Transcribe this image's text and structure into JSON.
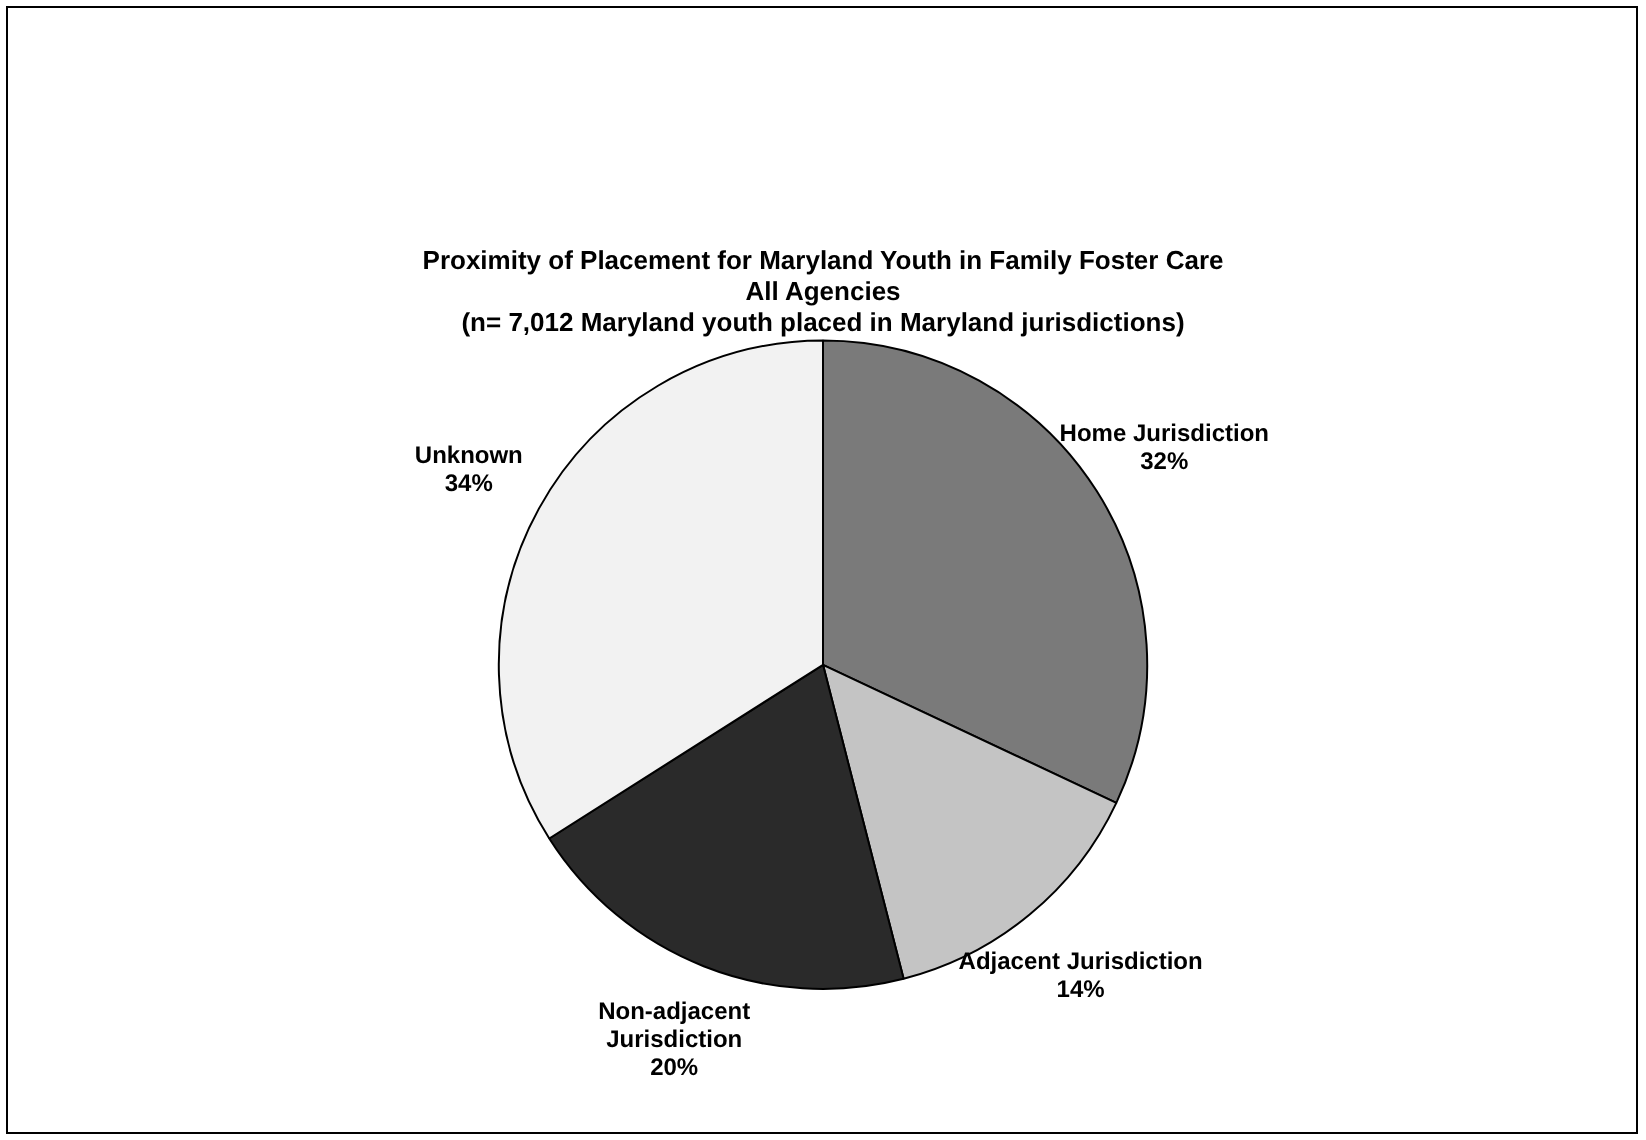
{
  "chart_data": {
    "type": "pie",
    "title": "Proximity of Placement for Maryland Youth in Family Foster Care",
    "subtitle": "All Agencies\n(n= 7,012 Maryland youth placed in Maryland jurisdictions)",
    "categories": [
      "Home Jurisdiction",
      "Adjacent Jurisdiction",
      "Non-adjacent Jurisdiction",
      "Unknown"
    ],
    "values": [
      32,
      14,
      20,
      34
    ],
    "value_labels": [
      "32%",
      "14%",
      "20%",
      "34%"
    ],
    "colors": [
      "#7a7a7a",
      "#c4c4c4",
      "#2a2a2a",
      "#f2f2f2"
    ],
    "legend": false
  }
}
